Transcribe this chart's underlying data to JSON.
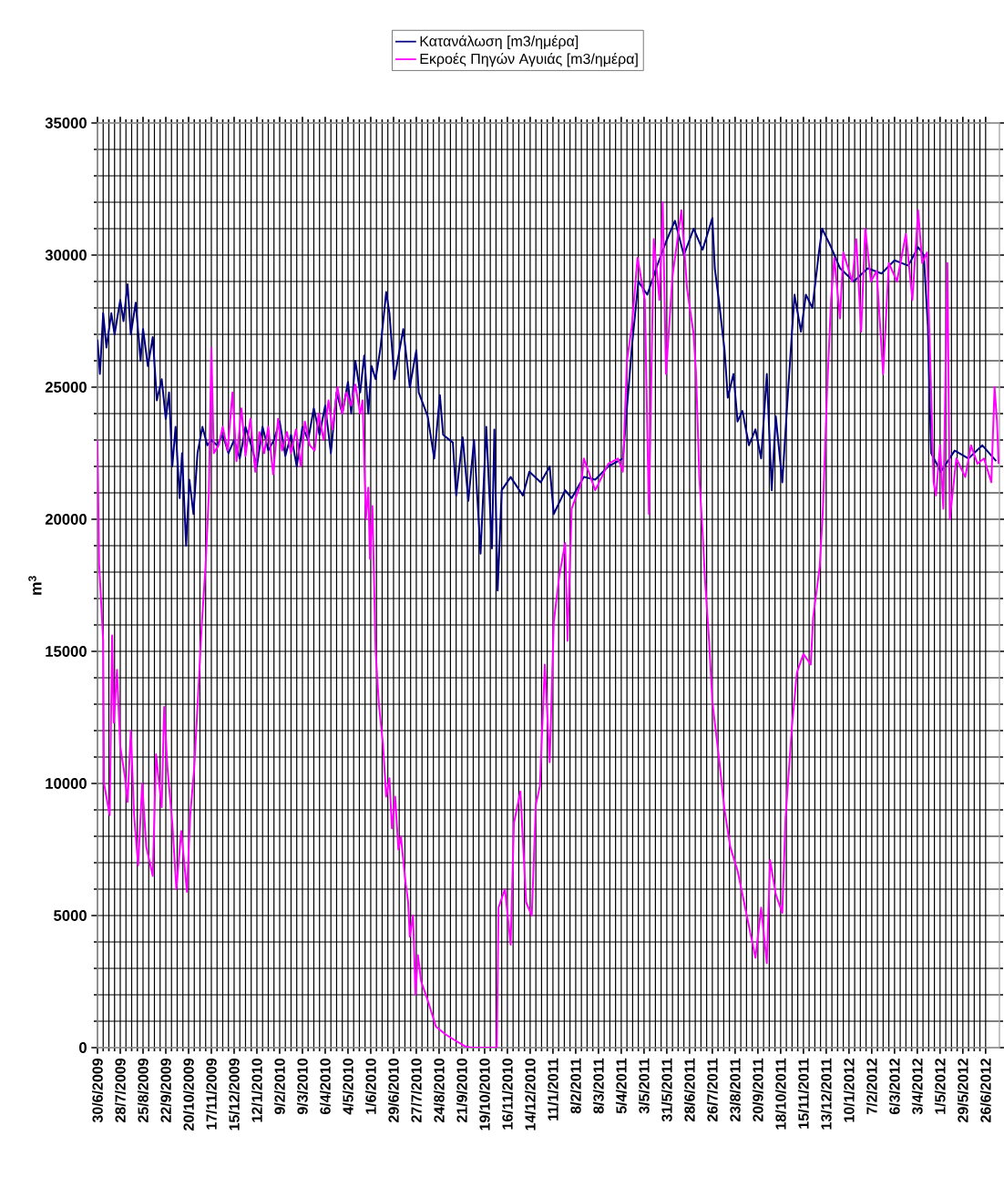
{
  "chart_data": {
    "type": "line",
    "ylabel": "m$^{3}$",
    "xlim": [
      "2009-06-30",
      "2012-07-13"
    ],
    "ylim": [
      0,
      35000
    ],
    "yticks": [
      0,
      5000,
      10000,
      15000,
      20000,
      25000,
      30000,
      35000
    ],
    "xticks": [
      {
        "value": "2009-06-30",
        "label": "30/6/2009"
      },
      {
        "value": "2009-07-28",
        "label": "28/7/2009"
      },
      {
        "value": "2009-08-25",
        "label": "25/8/2009"
      },
      {
        "value": "2009-09-22",
        "label": "22/9/2009"
      },
      {
        "value": "2009-10-20",
        "label": "20/10/2009"
      },
      {
        "value": "2009-11-17",
        "label": "17/11/2009"
      },
      {
        "value": "2009-12-15",
        "label": "15/12/2009"
      },
      {
        "value": "2010-01-12",
        "label": "12/1/2010"
      },
      {
        "value": "2010-02-09",
        "label": "9/2/2010"
      },
      {
        "value": "2010-03-09",
        "label": "9/3/2010"
      },
      {
        "value": "2010-04-06",
        "label": "6/4/2010"
      },
      {
        "value": "2010-05-04",
        "label": "4/5/2010"
      },
      {
        "value": "2010-06-01",
        "label": "1/6/2010"
      },
      {
        "value": "2010-06-29",
        "label": "29/6/2010"
      },
      {
        "value": "2010-07-27",
        "label": "27/7/2010"
      },
      {
        "value": "2010-08-24",
        "label": "24/8/2010"
      },
      {
        "value": "2010-09-21",
        "label": "21/9/2010"
      },
      {
        "value": "2010-10-19",
        "label": "19/10/2010"
      },
      {
        "value": "2010-11-16",
        "label": "16/11/2010"
      },
      {
        "value": "2010-12-14",
        "label": "14/12/2010"
      },
      {
        "value": "2011-01-11",
        "label": "11/1/2011"
      },
      {
        "value": "2011-02-08",
        "label": "8/2/2011"
      },
      {
        "value": "2011-03-08",
        "label": "8/3/2011"
      },
      {
        "value": "2011-04-05",
        "label": "5/4/2011"
      },
      {
        "value": "2011-05-03",
        "label": "3/5/2011"
      },
      {
        "value": "2011-05-31",
        "label": "31/5/2011"
      },
      {
        "value": "2011-06-28",
        "label": "28/6/2011"
      },
      {
        "value": "2011-07-26",
        "label": "26/7/2011"
      },
      {
        "value": "2011-08-23",
        "label": "23/8/2011"
      },
      {
        "value": "2011-09-20",
        "label": "20/9/2011"
      },
      {
        "value": "2011-10-18",
        "label": "18/10/2011"
      },
      {
        "value": "2011-11-15",
        "label": "15/11/2011"
      },
      {
        "value": "2011-12-13",
        "label": "13/12/2011"
      },
      {
        "value": "2012-01-10",
        "label": "10/1/2012"
      },
      {
        "value": "2012-02-07",
        "label": "7/2/2012"
      },
      {
        "value": "2012-03-06",
        "label": "6/3/2012"
      },
      {
        "value": "2012-04-03",
        "label": "3/4/2012"
      },
      {
        "value": "2012-05-01",
        "label": "1/5/2012"
      },
      {
        "value": "2012-05-29",
        "label": "29/5/2012"
      },
      {
        "value": "2012-06-26",
        "label": "26/6/2012"
      }
    ],
    "grid": true,
    "legend": "top",
    "series": [
      {
        "name": "Κατανάλωση [m3/ημέρα]",
        "color": "#000080",
        "x": [
          "2009-06-30",
          "2009-07-03",
          "2009-07-07",
          "2009-07-11",
          "2009-07-17",
          "2009-07-21",
          "2009-07-28",
          "2009-08-01",
          "2009-08-06",
          "2009-08-10",
          "2009-08-16",
          "2009-08-22",
          "2009-08-25",
          "2009-08-31",
          "2009-09-06",
          "2009-09-11",
          "2009-09-17",
          "2009-09-22",
          "2009-09-26",
          "2009-09-30",
          "2009-10-04",
          "2009-10-09",
          "2009-10-12",
          "2009-10-17",
          "2009-10-21",
          "2009-10-26",
          "2009-10-31",
          "2009-11-06",
          "2009-11-12",
          "2009-11-17",
          "2009-11-24",
          "2009-12-01",
          "2009-12-08",
          "2009-12-15",
          "2009-12-22",
          "2009-12-29",
          "2010-01-05",
          "2010-01-12",
          "2010-01-19",
          "2010-01-26",
          "2010-02-02",
          "2010-02-09",
          "2010-02-16",
          "2010-02-23",
          "2010-03-02",
          "2010-03-09",
          "2010-03-16",
          "2010-03-23",
          "2010-03-30",
          "2010-04-06",
          "2010-04-13",
          "2010-04-20",
          "2010-04-27",
          "2010-05-04",
          "2010-05-08",
          "2010-05-13",
          "2010-05-19",
          "2010-05-24",
          "2010-05-29",
          "2010-06-02",
          "2010-06-07",
          "2010-06-13",
          "2010-06-20",
          "2010-06-24",
          "2010-06-30",
          "2010-07-11",
          "2010-07-19",
          "2010-07-27",
          "2010-07-30",
          "2010-08-10",
          "2010-08-18",
          "2010-08-25",
          "2010-08-29",
          "2010-09-10",
          "2010-09-14",
          "2010-09-22",
          "2010-09-29",
          "2010-10-06",
          "2010-10-14",
          "2010-10-21",
          "2010-10-28",
          "2010-10-31",
          "2010-11-04",
          "2010-11-09",
          "2010-11-20",
          "2010-12-05",
          "2010-12-13",
          "2010-12-27",
          "2011-01-07",
          "2011-01-12",
          "2011-01-26",
          "2011-02-03",
          "2011-02-18",
          "2011-03-04",
          "2011-03-20",
          "2011-04-07",
          "2011-04-18",
          "2011-04-26",
          "2011-05-07",
          "2011-05-18",
          "2011-05-30",
          "2011-06-10",
          "2011-06-21",
          "2011-07-03",
          "2011-07-14",
          "2011-07-26",
          "2011-07-29",
          "2011-08-03",
          "2011-08-10",
          "2011-08-14",
          "2011-08-21",
          "2011-08-26",
          "2011-09-01",
          "2011-09-09",
          "2011-09-17",
          "2011-09-24",
          "2011-10-01",
          "2011-10-07",
          "2011-10-12",
          "2011-10-20",
          "2011-10-27",
          "2011-11-04",
          "2011-11-12",
          "2011-11-18",
          "2011-11-26",
          "2011-12-04",
          "2011-12-08",
          "2011-12-19",
          "2011-12-30",
          "2012-01-16",
          "2012-02-02",
          "2012-02-19",
          "2012-03-06",
          "2012-03-23",
          "2012-04-04",
          "2012-04-11",
          "2012-04-16",
          "2012-04-20",
          "2012-05-02",
          "2012-05-19",
          "2012-06-05",
          "2012-06-22",
          "2012-07-09"
        ],
        "values": [
          26800,
          25500,
          27800,
          26500,
          27800,
          27000,
          28300,
          27500,
          28900,
          27000,
          28200,
          26000,
          27200,
          25800,
          26900,
          24500,
          25300,
          23800,
          24800,
          22000,
          23500,
          20800,
          22500,
          19000,
          21500,
          20200,
          22500,
          23500,
          22800,
          23000,
          22800,
          23200,
          22500,
          23000,
          22300,
          23500,
          22800,
          22000,
          23500,
          22600,
          23000,
          23700,
          22400,
          23200,
          22000,
          23500,
          23000,
          24200,
          23200,
          24300,
          22500,
          24800,
          24000,
          25200,
          24000,
          26000,
          24800,
          26200,
          24000,
          25800,
          25300,
          26500,
          28600,
          27800,
          25300,
          27200,
          25000,
          26400,
          24800,
          23900,
          22300,
          24700,
          23200,
          22900,
          20900,
          23100,
          20700,
          23000,
          18700,
          23500,
          18900,
          23400,
          17300,
          21100,
          21600,
          20900,
          21800,
          21400,
          22000,
          20200,
          21100,
          20800,
          21600,
          21500,
          22000,
          22300,
          26500,
          29000,
          28500,
          29500,
          30500,
          31300,
          30000,
          31000,
          30200,
          31400,
          29500,
          28300,
          26400,
          24600,
          25500,
          23700,
          24100,
          22800,
          23400,
          22300,
          25500,
          21100,
          23900,
          21400,
          24800,
          28500,
          27100,
          28500,
          28000,
          30100,
          31000,
          30300,
          29500,
          29000,
          29500,
          29300,
          29800,
          29600,
          30300,
          30000,
          27300,
          22500,
          21800,
          22600,
          22300,
          22800,
          22200
        ]
      },
      {
        "name": "Εκροές Πηγών Αγυιάς [m3/ημέρα]",
        "color": "#ff00ff",
        "x": [
          "2009-06-30",
          "2009-07-02",
          "2009-07-07",
          "2009-07-08",
          "2009-07-15",
          "2009-07-18",
          "2009-07-20",
          "2009-07-24",
          "2009-07-28",
          "2009-08-03",
          "2009-08-06",
          "2009-08-10",
          "2009-08-14",
          "2009-08-19",
          "2009-08-24",
          "2009-08-29",
          "2009-09-06",
          "2009-09-10",
          "2009-09-17",
          "2009-09-20",
          "2009-09-24",
          "2009-09-30",
          "2009-10-05",
          "2009-10-11",
          "2009-10-18",
          "2009-10-22",
          "2009-10-27",
          "2009-11-01",
          "2009-11-05",
          "2009-11-10",
          "2009-11-14",
          "2009-11-17",
          "2009-11-20",
          "2009-11-26",
          "2009-12-01",
          "2009-12-07",
          "2009-12-13",
          "2009-12-18",
          "2009-12-24",
          "2009-12-29",
          "2010-01-04",
          "2010-01-10",
          "2010-01-15",
          "2010-01-21",
          "2010-01-26",
          "2010-02-01",
          "2010-02-07",
          "2010-02-12",
          "2010-02-18",
          "2010-02-23",
          "2010-03-01",
          "2010-03-07",
          "2010-03-12",
          "2010-03-18",
          "2010-03-24",
          "2010-03-29",
          "2010-04-04",
          "2010-04-10",
          "2010-04-15",
          "2010-04-21",
          "2010-04-27",
          "2010-05-02",
          "2010-05-08",
          "2010-05-13",
          "2010-05-19",
          "2010-05-22",
          "2010-05-26",
          "2010-05-29",
          "2010-05-31",
          "2010-06-03",
          "2010-06-07",
          "2010-06-11",
          "2010-06-16",
          "2010-06-20",
          "2010-06-24",
          "2010-06-27",
          "2010-07-01",
          "2010-07-05",
          "2010-07-08",
          "2010-07-14",
          "2010-07-17",
          "2010-07-19",
          "2010-07-23",
          "2010-07-26",
          "2010-07-29",
          "2010-08-02",
          "2010-08-10",
          "2010-08-20",
          "2010-09-01",
          "2010-09-14",
          "2010-09-25",
          "2010-10-02",
          "2010-10-16",
          "2010-11-03",
          "2010-11-05",
          "2010-11-13",
          "2010-11-20",
          "2010-11-24",
          "2010-12-02",
          "2010-12-09",
          "2010-12-16",
          "2010-12-21",
          "2010-12-26",
          "2011-01-01",
          "2011-01-07",
          "2011-01-12",
          "2011-01-19",
          "2011-01-26",
          "2011-01-29",
          "2011-02-03",
          "2011-02-15",
          "2011-02-18",
          "2011-03-04",
          "2011-03-20",
          "2011-04-01",
          "2011-04-07",
          "2011-04-12",
          "2011-04-18",
          "2011-04-25",
          "2011-05-04",
          "2011-05-09",
          "2011-05-15",
          "2011-05-22",
          "2011-05-26",
          "2011-05-30",
          "2011-06-07",
          "2011-06-18",
          "2011-06-25",
          "2011-07-03",
          "2011-07-06",
          "2011-07-10",
          "2011-07-14",
          "2011-07-17",
          "2011-07-22",
          "2011-07-26",
          "2011-08-03",
          "2011-08-10",
          "2011-08-17",
          "2011-08-26",
          "2011-09-01",
          "2011-09-09",
          "2011-09-17",
          "2011-09-24",
          "2011-10-01",
          "2011-10-05",
          "2011-10-12",
          "2011-10-20",
          "2011-10-24",
          "2011-11-01",
          "2011-11-07",
          "2011-11-15",
          "2011-11-24",
          "2011-11-27",
          "2011-12-05",
          "2011-12-09",
          "2011-12-14",
          "2011-12-19",
          "2011-12-23",
          "2011-12-30",
          "2012-01-03",
          "2012-01-14",
          "2012-01-19",
          "2012-01-25",
          "2012-01-30",
          "2012-02-06",
          "2012-02-13",
          "2012-02-21",
          "2012-02-28",
          "2012-03-09",
          "2012-03-20",
          "2012-03-28",
          "2012-04-04",
          "2012-04-09",
          "2012-04-15",
          "2012-04-20",
          "2012-04-23",
          "2012-04-26",
          "2012-05-01",
          "2012-05-05",
          "2012-05-10",
          "2012-05-13",
          "2012-05-21",
          "2012-06-01",
          "2012-06-08",
          "2012-06-16",
          "2012-06-24",
          "2012-07-03",
          "2012-07-07",
          "2012-07-10",
          "2012-07-12"
        ],
        "values": [
          23000,
          18300,
          15400,
          10000,
          8800,
          15600,
          12300,
          14300,
          11400,
          10200,
          9300,
          12000,
          8800,
          6900,
          10000,
          7600,
          6500,
          11100,
          9100,
          12900,
          10600,
          8500,
          6000,
          8200,
          5900,
          8800,
          10600,
          13500,
          15900,
          18300,
          21000,
          26500,
          22500,
          22800,
          23500,
          22600,
          24800,
          22200,
          24200,
          22400,
          23800,
          21800,
          23300,
          22500,
          23500,
          21700,
          23800,
          22600,
          23300,
          22500,
          23400,
          22000,
          23700,
          22800,
          22600,
          24000,
          23000,
          24500,
          23400,
          25000,
          24000,
          24800,
          24300,
          25100,
          24000,
          24500,
          20000,
          21200,
          18500,
          20500,
          15000,
          13000,
          11500,
          9500,
          10200,
          8300,
          9500,
          7500,
          8000,
          6200,
          5500,
          4200,
          5000,
          2000,
          3500,
          2500,
          1800,
          800,
          500,
          250,
          50,
          0,
          0,
          0,
          5300,
          6000,
          3900,
          8500,
          9700,
          5500,
          5000,
          9200,
          9900,
          14500,
          10800,
          16100,
          17900,
          19100,
          15400,
          20400,
          21400,
          22300,
          21100,
          22100,
          22300,
          21800,
          26000,
          27300,
          29900,
          28300,
          20200,
          30600,
          28300,
          32000,
          25500,
          29200,
          31700,
          28700,
          27000,
          25500,
          21600,
          19500,
          17700,
          15400,
          13100,
          11000,
          9000,
          7600,
          6700,
          5800,
          4600,
          3400,
          5300,
          3200,
          7100,
          5800,
          5100,
          8700,
          12200,
          14200,
          14900,
          14500,
          16300,
          18200,
          20400,
          24800,
          28300,
          29900,
          27600,
          30100,
          29000,
          30600,
          27100,
          31000,
          29000,
          29400,
          25500,
          29700,
          29000,
          30800,
          28300,
          31700,
          29700,
          30100,
          24800,
          21400,
          20900,
          22800,
          20400,
          29700,
          20000,
          22300,
          21600,
          22800,
          22100,
          22300,
          21400,
          25000,
          23700,
          22100
        ]
      }
    ]
  }
}
